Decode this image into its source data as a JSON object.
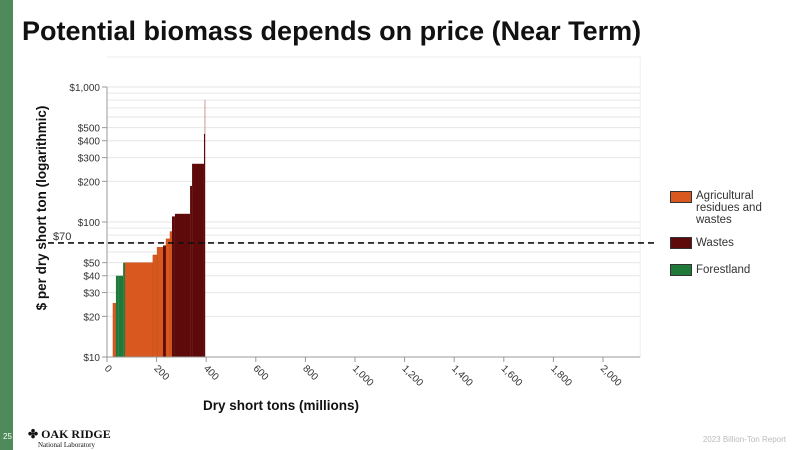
{
  "title": "Potential biomass depends on price (Near Term)",
  "page_number": "25",
  "logo": {
    "name": "OAK RIDGE",
    "sub": "National Laboratory"
  },
  "footer": "2023 Billion-Ton Report",
  "colors": {
    "ag": "#d9581f",
    "wastes": "#5e0a0a",
    "forest": "#1f7a3a"
  },
  "chart_data": {
    "type": "bar",
    "title": "Potential biomass depends on price (Near Term)",
    "xlabel": "Dry short tons (millions)",
    "ylabel": "$ per dry short ton (logarithmic)",
    "xlim": [
      0,
      2150
    ],
    "ylim": [
      10,
      1000
    ],
    "yscale": "log",
    "xticks": [
      "0",
      "200",
      "400",
      "600",
      "800",
      "1,000",
      "1,200",
      "1,400",
      "1,600",
      "1,800",
      "2,000"
    ],
    "xtick_values": [
      0,
      200,
      400,
      600,
      800,
      1000,
      1200,
      1400,
      1600,
      1800,
      2000
    ],
    "yticks": [
      "$10",
      "$20",
      "$30",
      "$40",
      "$50",
      "$100",
      "$200",
      "$300",
      "$400",
      "$500",
      "$1,000"
    ],
    "ytick_values": [
      10,
      20,
      30,
      40,
      50,
      100,
      200,
      300,
      400,
      500,
      1000
    ],
    "reference_line": {
      "value": 70,
      "label": "$70"
    },
    "legend": [
      {
        "key": "ag",
        "label": "Agricultural residues and wastes"
      },
      {
        "key": "wastes",
        "label": "Wastes"
      },
      {
        "key": "forest",
        "label": "Forestland"
      }
    ],
    "legend_position": "right",
    "steps": [
      {
        "x0": 24,
        "x1": 36,
        "price": 25,
        "cat": "ag"
      },
      {
        "x0": 36,
        "x1": 48,
        "price": 40,
        "cat": "forest"
      },
      {
        "x0": 48,
        "x1": 65,
        "price": 40,
        "cat": "forest"
      },
      {
        "x0": 65,
        "x1": 73,
        "price": 50,
        "cat": "forest"
      },
      {
        "x0": 73,
        "x1": 185,
        "price": 50,
        "cat": "ag"
      },
      {
        "x0": 185,
        "x1": 202,
        "price": 57,
        "cat": "ag"
      },
      {
        "x0": 202,
        "x1": 226,
        "price": 65,
        "cat": "ag"
      },
      {
        "x0": 226,
        "x1": 238,
        "price": 67,
        "cat": "wastes"
      },
      {
        "x0": 238,
        "x1": 254,
        "price": 75,
        "cat": "ag"
      },
      {
        "x0": 254,
        "x1": 262,
        "price": 85,
        "cat": "ag"
      },
      {
        "x0": 262,
        "x1": 274,
        "price": 110,
        "cat": "wastes"
      },
      {
        "x0": 274,
        "x1": 335,
        "price": 115,
        "cat": "wastes"
      },
      {
        "x0": 335,
        "x1": 343,
        "price": 185,
        "cat": "wastes"
      },
      {
        "x0": 343,
        "x1": 391,
        "price": 270,
        "cat": "wastes"
      },
      {
        "x0": 391,
        "x1": 396,
        "price": 450,
        "cat": "wastes"
      }
    ]
  }
}
